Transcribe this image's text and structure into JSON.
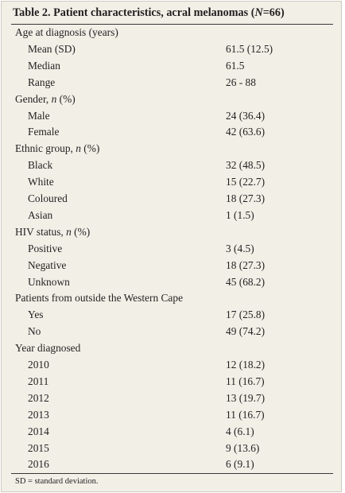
{
  "table": {
    "title_prefix": "Table 2. Patient characteristics, acral melanomas (",
    "title_n": "N",
    "title_suffix": "=66)",
    "footnote": "SD = standard deviation.",
    "rows": [
      {
        "label": "Age at diagnosis (years)",
        "value": "",
        "sub": false
      },
      {
        "label": "Mean (SD)",
        "value": "61.5 (12.5)",
        "sub": true
      },
      {
        "label": "Median",
        "value": "61.5",
        "sub": true
      },
      {
        "label": "Range",
        "value": "26 - 88",
        "sub": true
      },
      {
        "label": "Gender, ",
        "italic": "n",
        "tail": " (%)",
        "value": "",
        "sub": false
      },
      {
        "label": "Male",
        "value": "24 (36.4)",
        "sub": true
      },
      {
        "label": "Female",
        "value": "42 (63.6)",
        "sub": true
      },
      {
        "label": "Ethnic group, ",
        "italic": "n",
        "tail": " (%)",
        "value": "",
        "sub": false
      },
      {
        "label": "Black",
        "value": "32 (48.5)",
        "sub": true
      },
      {
        "label": "White",
        "value": "15 (22.7)",
        "sub": true
      },
      {
        "label": "Coloured",
        "value": "18 (27.3)",
        "sub": true
      },
      {
        "label": "Asian",
        "value": "1 (1.5)",
        "sub": true
      },
      {
        "label": "HIV status, ",
        "italic": "n",
        "tail": " (%)",
        "value": "",
        "sub": false
      },
      {
        "label": "Positive",
        "value": "3 (4.5)",
        "sub": true
      },
      {
        "label": "Negative",
        "value": "18 (27.3)",
        "sub": true
      },
      {
        "label": "Unknown",
        "value": "45 (68.2)",
        "sub": true
      },
      {
        "label": "Patients from outside the Western Cape",
        "value": "",
        "sub": false
      },
      {
        "label": "Yes",
        "value": "17 (25.8)",
        "sub": true
      },
      {
        "label": "No",
        "value": "49 (74.2)",
        "sub": true
      },
      {
        "label": "Year diagnosed",
        "value": "",
        "sub": false
      },
      {
        "label": "2010",
        "value": "12 (18.2)",
        "sub": true
      },
      {
        "label": "2011",
        "value": "11 (16.7)",
        "sub": true
      },
      {
        "label": "2012",
        "value": "13 (19.7)",
        "sub": true
      },
      {
        "label": "2013",
        "value": "11 (16.7)",
        "sub": true
      },
      {
        "label": "2014",
        "value": "4 (6.1)",
        "sub": true
      },
      {
        "label": "2015",
        "value": "9 (13.6)",
        "sub": true
      },
      {
        "label": "2016",
        "value": "6 (9.1)",
        "sub": true
      }
    ]
  }
}
